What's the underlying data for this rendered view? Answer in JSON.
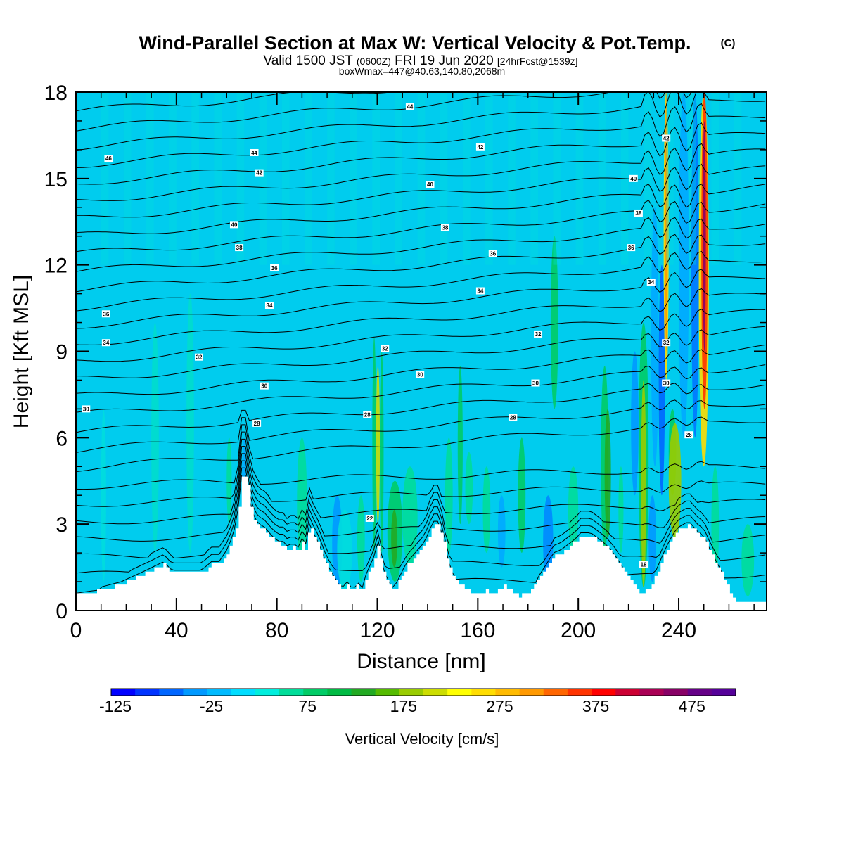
{
  "chart_data": {
    "type": "heatmap",
    "title": "Wind-Parallel Section at Max W: Vertical Velocity & Pot.Temp.",
    "title_mark": "(C)",
    "subtitle": {
      "main": "Valid 1500 JST",
      "zulu": "(0600Z)",
      "date": "FRI 19 Jun 2020",
      "fcst": "[24hrFcst@1539z]"
    },
    "subtitle2": "boxWmax=447@40.63,140.80,2068m",
    "xlabel": "Distance [nm]",
    "ylabel": "Height [Kft MSL]",
    "xlim": [
      0,
      275
    ],
    "ylim": [
      0,
      18
    ],
    "xticks": [
      0,
      40,
      80,
      120,
      160,
      200,
      240
    ],
    "yticks": [
      0,
      3,
      6,
      9,
      12,
      15,
      18
    ],
    "colorbar": {
      "label": "Vertical Velocity [cm/s]",
      "min": -125,
      "max": 525,
      "step": 25,
      "ticks": [
        -125,
        -25,
        75,
        175,
        275,
        375,
        475
      ],
      "colors": [
        "#0000ff",
        "#0033ff",
        "#0066ff",
        "#0099ff",
        "#00bbff",
        "#00ddff",
        "#00eedd",
        "#00dd99",
        "#00cc66",
        "#00bb44",
        "#22aa22",
        "#55bb00",
        "#99cc00",
        "#ccdd00",
        "#ffff00",
        "#ffdd00",
        "#ffbb00",
        "#ff9900",
        "#ff6600",
        "#ff3300",
        "#ff0000",
        "#cc0033",
        "#aa0055",
        "#880066",
        "#660088",
        "#550099"
      ]
    },
    "theta_labels": [
      {
        "x": 13,
        "y": 15.7,
        "label": "46"
      },
      {
        "x": 71,
        "y": 15.9,
        "label": "44"
      },
      {
        "x": 73,
        "y": 15.2,
        "label": "42"
      },
      {
        "x": 63,
        "y": 13.4,
        "label": "40"
      },
      {
        "x": 65,
        "y": 12.6,
        "label": "38"
      },
      {
        "x": 79,
        "y": 11.9,
        "label": "36"
      },
      {
        "x": 77,
        "y": 10.6,
        "label": "34"
      },
      {
        "x": 12,
        "y": 10.3,
        "label": "36"
      },
      {
        "x": 12,
        "y": 9.3,
        "label": "34"
      },
      {
        "x": 49,
        "y": 8.8,
        "label": "32"
      },
      {
        "x": 75,
        "y": 7.8,
        "label": "30"
      },
      {
        "x": 72,
        "y": 6.5,
        "label": "28"
      },
      {
        "x": 4,
        "y": 7.0,
        "label": "30"
      },
      {
        "x": 133,
        "y": 17.5,
        "label": "44"
      },
      {
        "x": 161,
        "y": 16.1,
        "label": "42"
      },
      {
        "x": 141,
        "y": 14.8,
        "label": "40"
      },
      {
        "x": 147,
        "y": 13.3,
        "label": "38"
      },
      {
        "x": 166,
        "y": 12.4,
        "label": "36"
      },
      {
        "x": 161,
        "y": 11.1,
        "label": "34"
      },
      {
        "x": 123,
        "y": 9.1,
        "label": "32"
      },
      {
        "x": 137,
        "y": 8.2,
        "label": "30"
      },
      {
        "x": 116,
        "y": 6.8,
        "label": "28"
      },
      {
        "x": 174,
        "y": 6.7,
        "label": "28"
      },
      {
        "x": 184,
        "y": 9.6,
        "label": "32"
      },
      {
        "x": 183,
        "y": 7.9,
        "label": "30"
      },
      {
        "x": 222,
        "y": 15.0,
        "label": "40"
      },
      {
        "x": 224,
        "y": 13.8,
        "label": "38"
      },
      {
        "x": 221,
        "y": 12.6,
        "label": "36"
      },
      {
        "x": 229,
        "y": 11.4,
        "label": "34"
      },
      {
        "x": 235,
        "y": 16.4,
        "label": "42"
      },
      {
        "x": 235,
        "y": 9.3,
        "label": "32"
      },
      {
        "x": 235,
        "y": 7.9,
        "label": "30"
      },
      {
        "x": 244,
        "y": 6.1,
        "label": "26"
      },
      {
        "x": 117,
        "y": 3.2,
        "label": "22"
      },
      {
        "x": 226,
        "y": 1.6,
        "label": "18"
      }
    ],
    "terrain": [
      [
        0,
        0.6
      ],
      [
        5,
        0.6
      ],
      [
        18,
        0.9
      ],
      [
        28,
        1.3
      ],
      [
        35,
        1.6
      ],
      [
        38,
        1.3
      ],
      [
        50,
        1.3
      ],
      [
        54,
        1.6
      ],
      [
        57,
        1.6
      ],
      [
        60,
        2.0
      ],
      [
        62,
        2.4
      ],
      [
        64,
        3.0
      ],
      [
        65,
        3.8
      ],
      [
        66,
        4.6
      ],
      [
        68,
        4.6
      ],
      [
        69,
        3.8
      ],
      [
        71,
        3.1
      ],
      [
        73,
        2.9
      ],
      [
        75,
        2.8
      ],
      [
        77,
        2.6
      ],
      [
        79,
        2.4
      ],
      [
        81,
        2.3
      ],
      [
        83,
        2.3
      ],
      [
        85,
        2.0
      ],
      [
        86,
        2.4
      ],
      [
        87,
        2.2
      ],
      [
        88,
        2.0
      ],
      [
        90,
        2.4
      ],
      [
        91,
        2.0
      ],
      [
        93,
        2.9
      ],
      [
        95,
        2.5
      ],
      [
        97,
        2.2
      ],
      [
        98,
        1.9
      ],
      [
        100,
        1.5
      ],
      [
        102,
        1.2
      ],
      [
        104,
        0.9
      ],
      [
        106,
        0.7
      ],
      [
        108,
        0.9
      ],
      [
        110,
        0.7
      ],
      [
        112,
        0.9
      ],
      [
        114,
        0.7
      ],
      [
        116,
        1.3
      ],
      [
        118,
        1.6
      ],
      [
        119,
        1.9
      ],
      [
        120,
        2.2
      ],
      [
        121,
        1.9
      ],
      [
        122,
        1.4
      ],
      [
        124,
        1.0
      ],
      [
        126,
        0.7
      ],
      [
        128,
        0.9
      ],
      [
        130,
        1.3
      ],
      [
        132,
        1.6
      ],
      [
        135,
        1.9
      ],
      [
        138,
        2.2
      ],
      [
        140,
        2.5
      ],
      [
        142,
        3.0
      ],
      [
        144,
        3.0
      ],
      [
        146,
        2.5
      ],
      [
        147,
        2.1
      ],
      [
        148,
        1.7
      ],
      [
        150,
        1.2
      ],
      [
        153,
        0.9
      ],
      [
        156,
        0.7
      ],
      [
        160,
        0.6
      ],
      [
        163,
        0.7
      ],
      [
        166,
        0.5
      ],
      [
        168,
        0.7
      ],
      [
        170,
        0.9
      ],
      [
        173,
        0.7
      ],
      [
        176,
        0.5
      ],
      [
        180,
        0.6
      ],
      [
        183,
        0.9
      ],
      [
        185,
        1.2
      ],
      [
        188,
        1.6
      ],
      [
        190,
        1.9
      ],
      [
        193,
        2.0
      ],
      [
        196,
        2.2
      ],
      [
        199,
        2.4
      ],
      [
        201,
        2.6
      ],
      [
        205,
        2.6
      ],
      [
        208,
        2.4
      ],
      [
        211,
        2.2
      ],
      [
        214,
        1.9
      ],
      [
        217,
        1.5
      ],
      [
        220,
        1.1
      ],
      [
        223,
        0.7
      ],
      [
        226,
        0.6
      ],
      [
        229,
        0.9
      ],
      [
        232,
        1.5
      ],
      [
        235,
        2.1
      ],
      [
        238,
        2.6
      ],
      [
        240,
        2.8
      ],
      [
        242,
        2.9
      ],
      [
        244,
        3.0
      ],
      [
        246,
        2.8
      ],
      [
        248,
        2.6
      ],
      [
        250,
        2.5
      ],
      [
        252,
        2.1
      ],
      [
        255,
        1.6
      ],
      [
        258,
        1.1
      ],
      [
        260,
        0.7
      ],
      [
        262,
        0.3
      ],
      [
        264,
        0.3
      ],
      [
        275,
        0.3
      ]
    ]
  }
}
